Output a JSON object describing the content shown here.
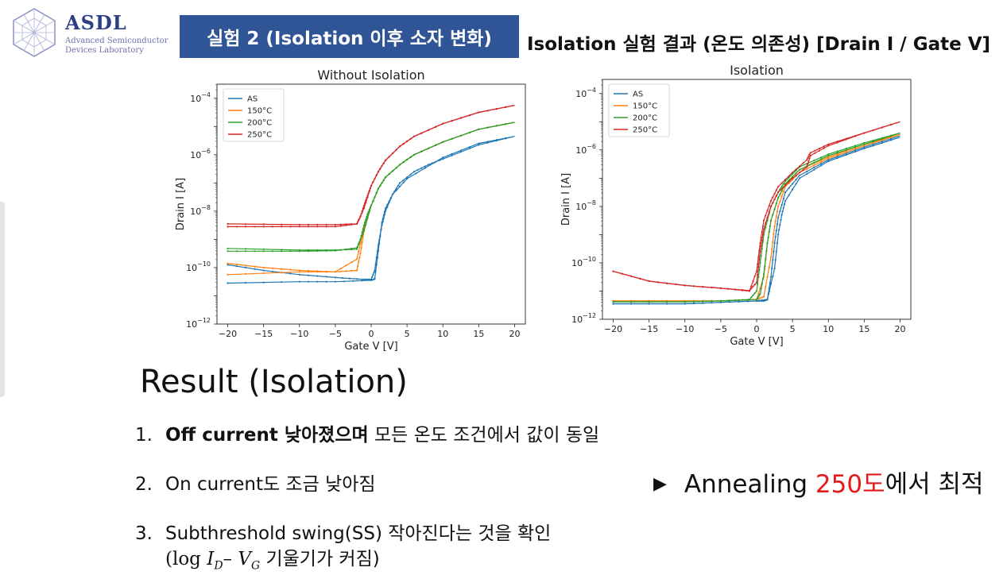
{
  "logo": {
    "title": "ASDL",
    "subtitle_line1": "Advanced Semiconductor",
    "subtitle_line2": "Devices Laboratory"
  },
  "header": {
    "experiment_label": "실험 2 (Isolation 이후 소자 변화)",
    "title": "Isolation 실험 결과 (온도 의존성) [Drain I / Gate V]"
  },
  "chart_data": [
    {
      "type": "line",
      "title": "Without Isolation",
      "xlabel": "Gate V [V]",
      "ylabel": "Drain I [A]",
      "xlim": [
        -21.5,
        21.5
      ],
      "ylim_log10": [
        -12,
        -3.5
      ],
      "yscale": "log",
      "xticks": [
        -20,
        -15,
        -10,
        -5,
        0,
        5,
        10,
        15,
        20
      ],
      "xtick_labels": [
        "−20",
        "−15",
        "−10",
        "−5",
        "0",
        "5",
        "10",
        "15",
        "20"
      ],
      "yticks_log10": [
        -12,
        -10,
        -8,
        -6,
        -4
      ],
      "ytick_labels": [
        "10−12",
        "10−10",
        "10−8",
        "10−6",
        "10−4"
      ],
      "legend_position": "upper-left",
      "series": [
        {
          "name": "AS",
          "color": "#1f77b4",
          "fwd": {
            "x": [
              -20,
              -10,
              -5,
              0,
              0.5,
              1,
              1.5,
              2,
              3,
              4,
              6,
              8,
              10,
              15,
              20
            ],
            "log10y": [
              -10.55,
              -10.5,
              -10.5,
              -10.45,
              -10.4,
              -9.4,
              -8.4,
              -7.9,
              -7.4,
              -7.0,
              -6.6,
              -6.35,
              -6.15,
              -5.65,
              -5.35
            ]
          },
          "rev": {
            "x": [
              -20,
              -15,
              -10,
              -5,
              -1,
              0,
              0.5,
              1,
              1.5,
              2,
              3,
              5,
              10,
              15,
              20
            ],
            "log10y": [
              -9.9,
              -10.1,
              -10.25,
              -10.35,
              -10.42,
              -10.42,
              -10.1,
              -9.2,
              -8.5,
              -8.0,
              -7.4,
              -6.85,
              -6.1,
              -5.6,
              -5.35
            ]
          }
        },
        {
          "name": "150°C",
          "color": "#ff7f0e",
          "fwd": {
            "x": [
              -20,
              -10,
              -5,
              -2,
              -1.5,
              -1,
              -0.5,
              0,
              1,
              2,
              4,
              6,
              10,
              15,
              20
            ],
            "log10y": [
              -10.25,
              -10.15,
              -10.15,
              -10.1,
              -9.5,
              -8.7,
              -8.2,
              -7.8,
              -7.2,
              -6.8,
              -6.35,
              -6.0,
              -5.55,
              -5.1,
              -4.85
            ]
          },
          "rev": {
            "x": [
              -20,
              -15,
              -10,
              -5,
              -2,
              -1,
              0,
              1,
              2,
              4,
              6,
              10,
              15,
              20
            ],
            "log10y": [
              -9.85,
              -10.0,
              -10.1,
              -10.15,
              -9.7,
              -8.6,
              -7.8,
              -7.2,
              -6.8,
              -6.35,
              -6.0,
              -5.55,
              -5.1,
              -4.85
            ]
          }
        },
        {
          "name": "200°C",
          "color": "#2ca02c",
          "fwd": {
            "x": [
              -20,
              -10,
              -5,
              -2,
              -1.5,
              -1,
              -0.5,
              0,
              1,
              2,
              4,
              6,
              10,
              15,
              20
            ],
            "log10y": [
              -9.32,
              -9.38,
              -9.38,
              -9.35,
              -9.0,
              -8.5,
              -8.1,
              -7.8,
              -7.2,
              -6.8,
              -6.35,
              -6.0,
              -5.55,
              -5.1,
              -4.85
            ]
          },
          "rev": {
            "x": [
              -20,
              -15,
              -10,
              -5,
              -2,
              -1,
              0,
              1,
              2,
              4,
              6,
              10,
              15,
              20
            ],
            "log10y": [
              -9.42,
              -9.42,
              -9.42,
              -9.4,
              -9.3,
              -8.7,
              -7.8,
              -7.2,
              -6.8,
              -6.35,
              -6.0,
              -5.55,
              -5.1,
              -4.85
            ]
          }
        },
        {
          "name": "250°C",
          "color": "#d62728",
          "fwd": {
            "x": [
              -20,
              -10,
              -5,
              -2,
              -1.5,
              -1,
              -0.5,
              0,
              1,
              2,
              4,
              6,
              10,
              15,
              20
            ],
            "log10y": [
              -8.45,
              -8.48,
              -8.48,
              -8.45,
              -8.2,
              -7.8,
              -7.45,
              -7.1,
              -6.6,
              -6.2,
              -5.7,
              -5.35,
              -4.9,
              -4.5,
              -4.25
            ]
          },
          "rev": {
            "x": [
              -20,
              -15,
              -10,
              -5,
              -2,
              -1,
              0,
              1,
              2,
              4,
              6,
              10,
              15,
              20
            ],
            "log10y": [
              -8.55,
              -8.55,
              -8.55,
              -8.55,
              -8.45,
              -7.9,
              -7.1,
              -6.6,
              -6.2,
              -5.7,
              -5.35,
              -4.9,
              -4.5,
              -4.25
            ]
          }
        }
      ]
    },
    {
      "type": "line",
      "title": "Isolation",
      "xlabel": "Gate V [V]",
      "ylabel": "Drain I [A]",
      "xlim": [
        -21.5,
        21.5
      ],
      "ylim_log10": [
        -12,
        -3.5
      ],
      "yscale": "log",
      "xticks": [
        -20,
        -15,
        -10,
        -5,
        0,
        5,
        10,
        15,
        20
      ],
      "xtick_labels": [
        "−20",
        "−15",
        "−10",
        "−5",
        "0",
        "5",
        "10",
        "15",
        "20"
      ],
      "yticks_log10": [
        -12,
        -10,
        -8,
        -6,
        -4
      ],
      "ytick_labels": [
        "10−12",
        "10−10",
        "10−8",
        "10−6",
        "10−4"
      ],
      "legend_position": "upper-left",
      "series": [
        {
          "name": "AS",
          "color": "#1f77b4",
          "fwd": {
            "x": [
              -20,
              -10,
              -5,
              0,
              1,
              1.5,
              2,
              2.5,
              3,
              4,
              6,
              10,
              15,
              20
            ],
            "log10y": [
              -11.45,
              -11.45,
              -11.4,
              -11.35,
              -11.35,
              -11.3,
              -10.5,
              -9.3,
              -8.4,
              -7.5,
              -6.9,
              -6.35,
              -5.9,
              -5.5
            ]
          },
          "rev": {
            "x": [
              -20,
              -10,
              -5,
              0,
              1.5,
              2.5,
              3,
              3.5,
              4,
              6,
              10,
              15,
              20
            ],
            "log10y": [
              -11.45,
              -11.45,
              -11.4,
              -11.35,
              -11.3,
              -10.2,
              -9.0,
              -8.3,
              -7.8,
              -7.0,
              -6.4,
              -5.95,
              -5.55
            ]
          }
        },
        {
          "name": "150°C",
          "color": "#ff7f0e",
          "fwd": {
            "x": [
              -20,
              -10,
              -5,
              0,
              1,
              1.5,
              2,
              3,
              4,
              6,
              10,
              15,
              20
            ],
            "log10y": [
              -11.35,
              -11.35,
              -11.35,
              -11.3,
              -10.5,
              -9.3,
              -8.5,
              -7.7,
              -7.2,
              -6.7,
              -6.25,
              -5.8,
              -5.45
            ]
          },
          "rev": {
            "x": [
              -20,
              -10,
              -5,
              0,
              1,
              2,
              2.5,
              3,
              4,
              6,
              10,
              15,
              20
            ],
            "log10y": [
              -11.35,
              -11.35,
              -11.35,
              -11.3,
              -11.2,
              -9.8,
              -8.7,
              -8.0,
              -7.3,
              -6.8,
              -6.3,
              -5.85,
              -5.45
            ]
          }
        },
        {
          "name": "200°C",
          "color": "#2ca02c",
          "fwd": {
            "x": [
              -20,
              -10,
              -5,
              -1,
              0,
              0.5,
              1,
              2,
              3,
              4,
              6,
              10,
              15,
              20
            ],
            "log10y": [
              -11.38,
              -11.38,
              -11.35,
              -11.3,
              -11.0,
              -10.0,
              -9.0,
              -8.0,
              -7.5,
              -7.1,
              -6.6,
              -6.15,
              -5.75,
              -5.4
            ]
          },
          "rev": {
            "x": [
              -20,
              -10,
              -5,
              0,
              0.5,
              1,
              1.5,
              2,
              3,
              4,
              6,
              10,
              15,
              20
            ],
            "log10y": [
              -11.38,
              -11.38,
              -11.35,
              -11.3,
              -11.1,
              -10.4,
              -9.3,
              -8.5,
              -7.7,
              -7.2,
              -6.7,
              -6.2,
              -5.8,
              -5.4
            ]
          }
        },
        {
          "name": "250°C",
          "color": "#d62728",
          "fwd": {
            "x": [
              -20,
              -15,
              -10,
              -5,
              -1,
              0,
              0.5,
              1,
              2,
              3,
              5,
              7,
              7.5,
              10,
              15,
              20
            ],
            "log10y": [
              -10.3,
              -10.65,
              -10.8,
              -10.9,
              -10.98,
              -10.7,
              -9.6,
              -8.8,
              -8.0,
              -7.5,
              -7.0,
              -6.6,
              -6.2,
              -5.85,
              -5.4,
              -5.0
            ]
          },
          "rev": {
            "x": [
              -20,
              -15,
              -10,
              -5,
              -1,
              0,
              0.5,
              1,
              2,
              3,
              5,
              7,
              7.5,
              10,
              15,
              20
            ],
            "log10y": [
              -10.3,
              -10.65,
              -10.8,
              -10.9,
              -11.0,
              -10.3,
              -9.3,
              -8.5,
              -7.8,
              -7.3,
              -6.8,
              -6.35,
              -6.1,
              -5.8,
              -5.4,
              -5.0
            ]
          }
        }
      ]
    }
  ],
  "result": {
    "title": "Result (Isolation)",
    "item1": {
      "num": "1.",
      "bold": "Off current 낮아졌으며",
      "rest": " 모든 온도 조건에서 값이 동일"
    },
    "item2": {
      "num": "2.",
      "text": "On current도 조금 낮아짐"
    },
    "item3": {
      "num": "3.",
      "text": "Subthreshold swing(SS) 작아진다는 것을 확인"
    },
    "item3_formula": {
      "open": "(log ",
      "i": "I",
      "isub": "D",
      "dash": "– ",
      "v": "V",
      "vsub": "G",
      "rest": " 기울기가 커짐)"
    }
  },
  "conclusion": {
    "arrow": "▶",
    "pre": "Annealing ",
    "highlight": "250도",
    "post": "에서 최적",
    "highlight_color": "#e31a1a"
  }
}
